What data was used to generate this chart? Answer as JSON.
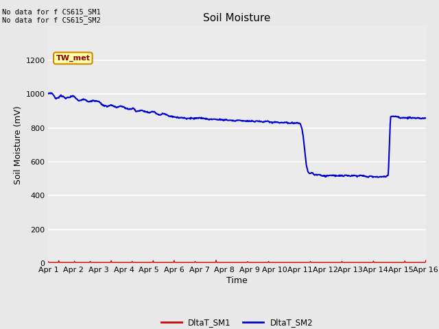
{
  "title": "Soil Moisture",
  "xlabel": "Time",
  "ylabel": "Soil Moisture (mV)",
  "text_no_data_1": "No data for f CS615_SM1",
  "text_no_data_2": "No data for f CS615_SM2",
  "annotation_box": "TW_met",
  "ylim": [
    0,
    1400
  ],
  "yticks": [
    0,
    200,
    400,
    600,
    800,
    1000,
    1200
  ],
  "xtick_labels": [
    "Apr 1",
    "Apr 2",
    "Apr 3",
    "Apr 4",
    "Apr 5",
    "Apr 6",
    "Apr 7",
    "Apr 8",
    "Apr 9",
    "Apr 10",
    "Apr 11",
    "Apr 12",
    "Apr 13",
    "Apr 14",
    "Apr 15",
    "Apr 16"
  ],
  "fig_bg_color": "#e8e8e8",
  "plot_bg_color": "#ebebeb",
  "line_color_SM1": "#cc0000",
  "line_color_SM2": "#0000cc",
  "legend_labels": [
    "DltaT_SM1",
    "DltaT_SM2"
  ],
  "title_fontsize": 11,
  "axis_label_fontsize": 9,
  "tick_fontsize": 8
}
